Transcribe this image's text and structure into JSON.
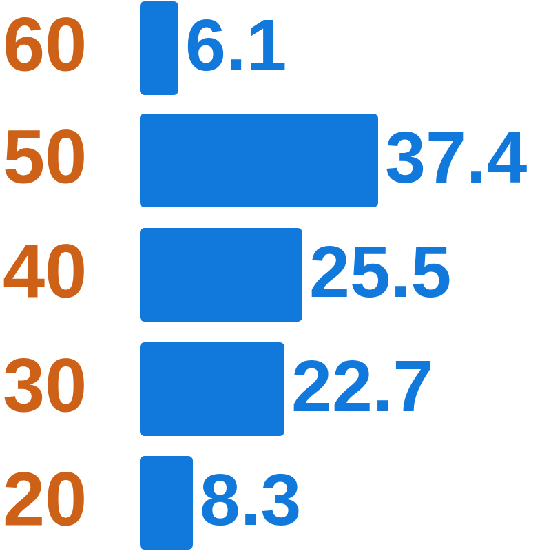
{
  "chart_data": {
    "type": "bar",
    "orientation": "horizontal",
    "categories": [
      "60",
      "50",
      "40",
      "30",
      "20"
    ],
    "values": [
      6.1,
      37.4,
      25.5,
      22.7,
      8.3
    ],
    "title": "",
    "xlabel": "",
    "ylabel": "",
    "xlim": [
      0,
      40
    ],
    "grid": false,
    "axes_visible": false,
    "legend": "none",
    "value_labels_position": "right-of-bar-end",
    "category_labels_position": "left",
    "bar_color": "#1178dc",
    "value_label_color": "#1178dc",
    "category_label_color": "#ce6118"
  }
}
